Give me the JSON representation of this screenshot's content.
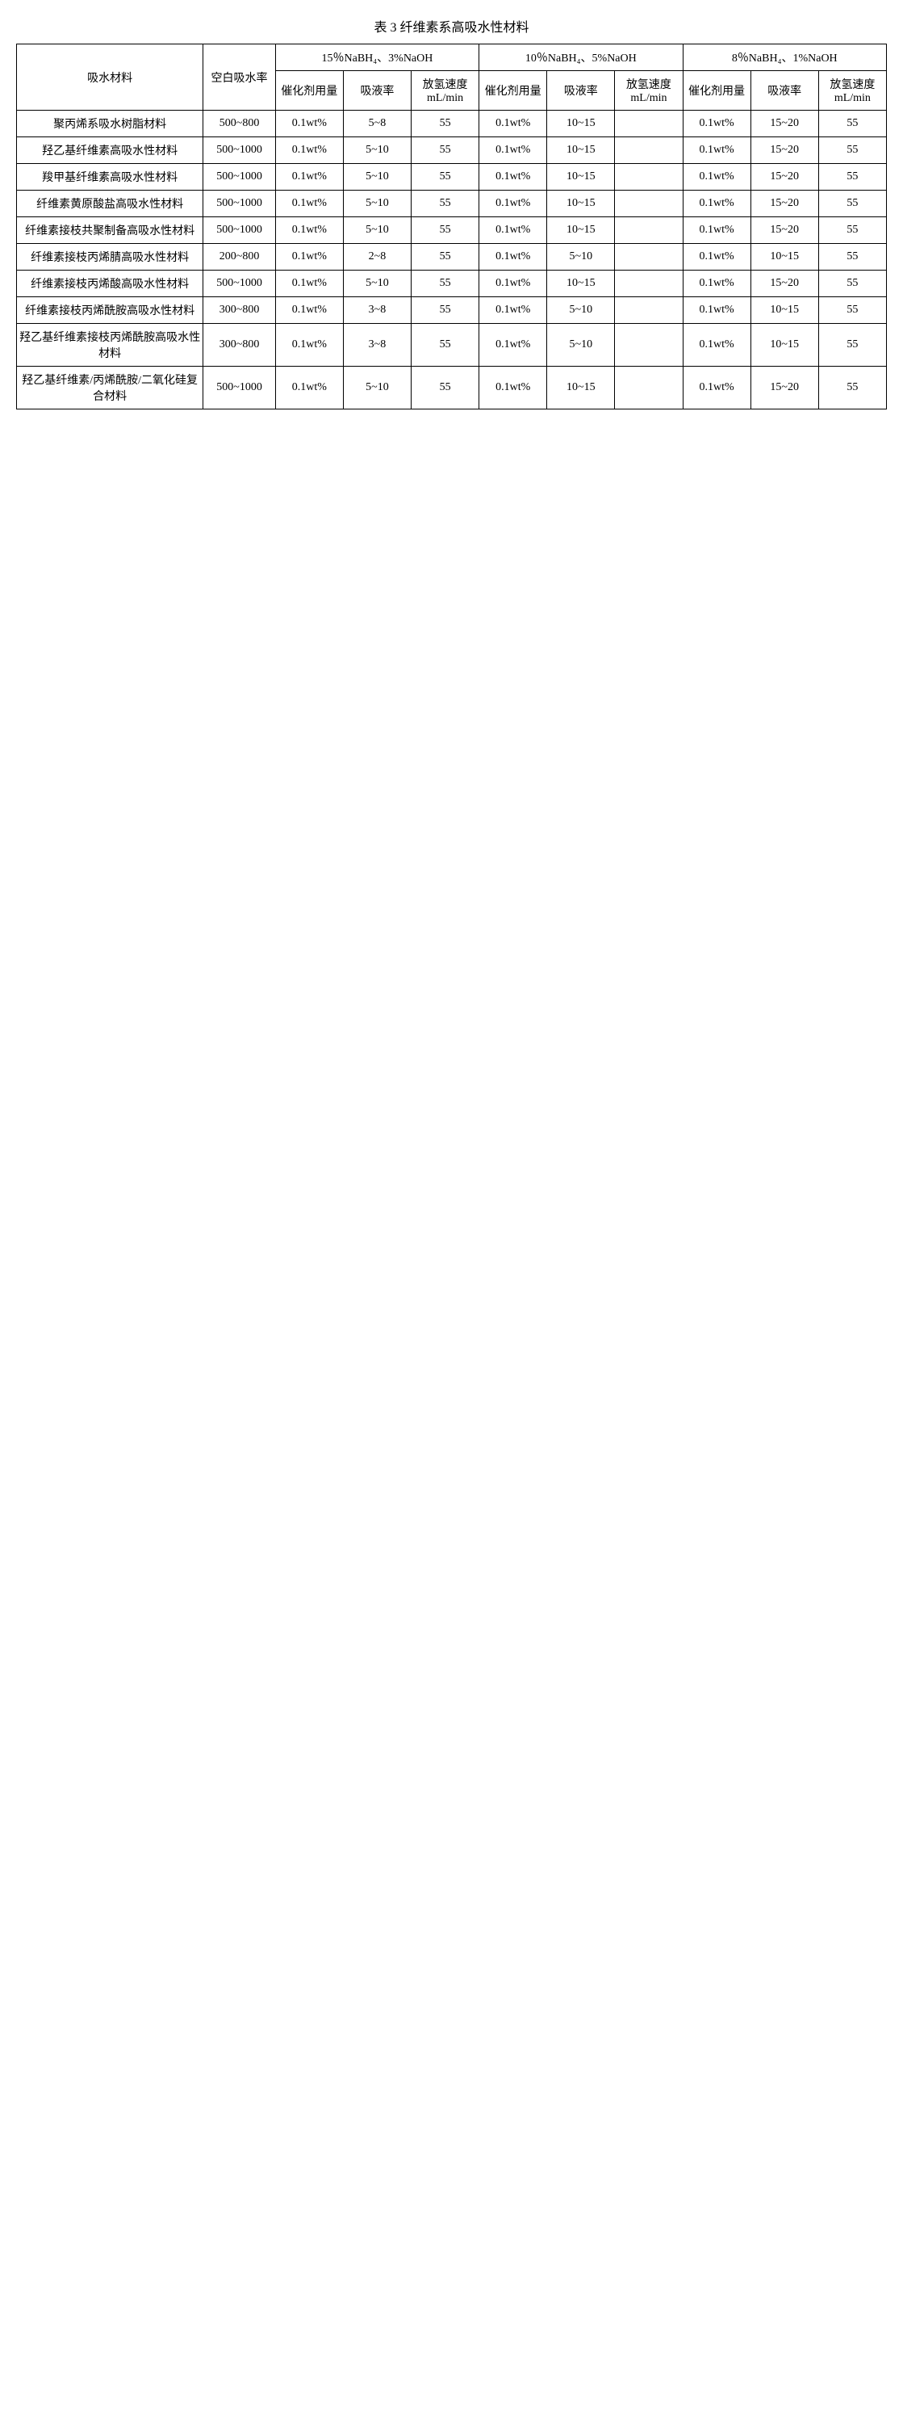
{
  "title": "表 3 纤维素系高吸水性材料",
  "headers": {
    "material": "吸水材料",
    "blank": "空白吸水率",
    "group1": "15％NaBH₄、3%NaOH",
    "group2": "10％NaBH₄、5%NaOH",
    "group3": "8％NaBH₄、1%NaOH",
    "catalyst": "催化剂用量",
    "absorb": "吸液率",
    "h2rate": "放氢速度mL/min"
  },
  "rows": [
    {
      "name": "聚丙烯系吸水树脂材料",
      "blank": "500~800",
      "g1_cat": "0.1wt%",
      "g1_abs": "5~8",
      "g1_h2": "55",
      "g2_cat": "0.1wt%",
      "g2_abs": "10~15",
      "g2_h2": "",
      "g3_cat": "0.1wt%",
      "g3_abs": "15~20",
      "g3_h2": "55"
    },
    {
      "name": "羟乙基纤维素高吸水性材料",
      "blank": "500~1000",
      "g1_cat": "0.1wt%",
      "g1_abs": "5~10",
      "g1_h2": "55",
      "g2_cat": "0.1wt%",
      "g2_abs": "10~15",
      "g2_h2": "",
      "g3_cat": "0.1wt%",
      "g3_abs": "15~20",
      "g3_h2": "55"
    },
    {
      "name": "羧甲基纤维素高吸水性材料",
      "blank": "500~1000",
      "g1_cat": "0.1wt%",
      "g1_abs": "5~10",
      "g1_h2": "55",
      "g2_cat": "0.1wt%",
      "g2_abs": "10~15",
      "g2_h2": "",
      "g3_cat": "0.1wt%",
      "g3_abs": "15~20",
      "g3_h2": "55"
    },
    {
      "name": "纤维素黄原酸盐高吸水性材料",
      "blank": "500~1000",
      "g1_cat": "0.1wt%",
      "g1_abs": "5~10",
      "g1_h2": "55",
      "g2_cat": "0.1wt%",
      "g2_abs": "10~15",
      "g2_h2": "",
      "g3_cat": "0.1wt%",
      "g3_abs": "15~20",
      "g3_h2": "55"
    },
    {
      "name": "纤维素接枝共聚制备高吸水性材料",
      "blank": "500~1000",
      "g1_cat": "0.1wt%",
      "g1_abs": "5~10",
      "g1_h2": "55",
      "g2_cat": "0.1wt%",
      "g2_abs": "10~15",
      "g2_h2": "",
      "g3_cat": "0.1wt%",
      "g3_abs": "15~20",
      "g3_h2": "55"
    },
    {
      "name": "纤维素接枝丙烯腈高吸水性材料",
      "blank": "200~800",
      "g1_cat": "0.1wt%",
      "g1_abs": "2~8",
      "g1_h2": "55",
      "g2_cat": "0.1wt%",
      "g2_abs": "5~10",
      "g2_h2": "",
      "g3_cat": "0.1wt%",
      "g3_abs": "10~15",
      "g3_h2": "55"
    },
    {
      "name": "纤维素接枝丙烯酸高吸水性材料",
      "blank": "500~1000",
      "g1_cat": "0.1wt%",
      "g1_abs": "5~10",
      "g1_h2": "55",
      "g2_cat": "0.1wt%",
      "g2_abs": "10~15",
      "g2_h2": "",
      "g3_cat": "0.1wt%",
      "g3_abs": "15~20",
      "g3_h2": "55"
    },
    {
      "name": "纤维素接枝丙烯酰胺高吸水性材料",
      "blank": "300~800",
      "g1_cat": "0.1wt%",
      "g1_abs": "3~8",
      "g1_h2": "55",
      "g2_cat": "0.1wt%",
      "g2_abs": "5~10",
      "g2_h2": "",
      "g3_cat": "0.1wt%",
      "g3_abs": "10~15",
      "g3_h2": "55"
    },
    {
      "name": "羟乙基纤维素接枝丙烯酰胺高吸水性材料",
      "blank": "300~800",
      "g1_cat": "0.1wt%",
      "g1_abs": "3~8",
      "g1_h2": "55",
      "g2_cat": "0.1wt%",
      "g2_abs": "5~10",
      "g2_h2": "",
      "g3_cat": "0.1wt%",
      "g3_abs": "10~15",
      "g3_h2": "55"
    },
    {
      "name": "羟乙基纤维素/丙烯酰胺/二氧化硅复合材料",
      "blank": "500~1000",
      "g1_cat": "0.1wt%",
      "g1_abs": "5~10",
      "g1_h2": "55",
      "g2_cat": "0.1wt%",
      "g2_abs": "10~15",
      "g2_h2": "",
      "g3_cat": "0.1wt%",
      "g3_abs": "15~20",
      "g3_h2": "55"
    }
  ],
  "styling": {
    "font_family": "SimSun",
    "font_size_body": 14,
    "font_size_title": 16,
    "border_color": "#000000",
    "background": "#ffffff",
    "col_widths": {
      "material": 220,
      "blank": 85,
      "group_each": 80
    }
  }
}
